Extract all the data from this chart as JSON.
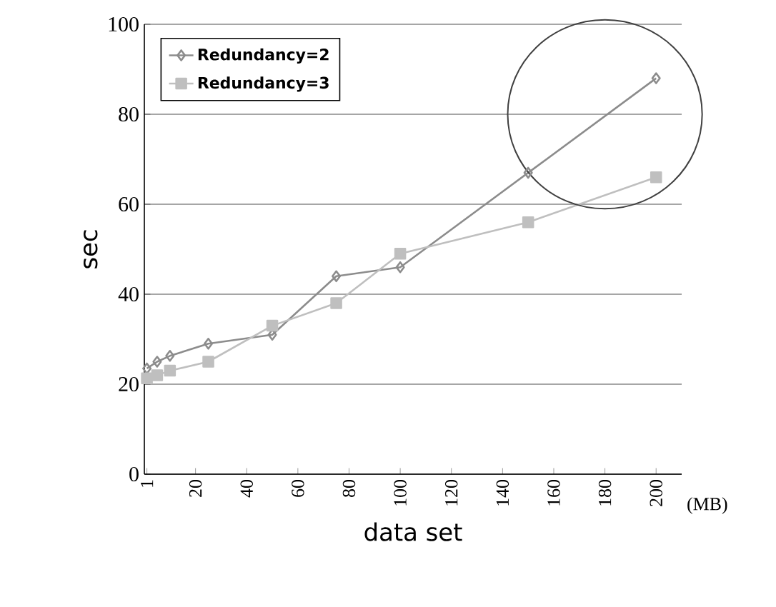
{
  "chart_data": {
    "type": "line",
    "xlabel": "data set",
    "ylabel": "sec",
    "xlim": [
      0,
      210
    ],
    "ylim": [
      0,
      100
    ],
    "xticks": [
      1,
      20,
      40,
      60,
      80,
      100,
      120,
      140,
      160,
      180,
      200
    ],
    "yticks": [
      0,
      20,
      40,
      60,
      80,
      100
    ],
    "grid": "y",
    "legend": "top left",
    "line_style": "solid",
    "series": [
      {
        "name": "Redundancy=2",
        "color": "#8c8c8c",
        "marker": "diamond",
        "x": [
          1,
          5,
          10,
          25,
          50,
          75,
          100,
          150,
          200
        ],
        "values": [
          23.5,
          25,
          26.3,
          29,
          31,
          44,
          46,
          67,
          88
        ]
      },
      {
        "name": "Redundancy=3",
        "color": "#bfbfbf",
        "marker": "square",
        "x": [
          1,
          5,
          10,
          25,
          50,
          75,
          100,
          150,
          200
        ],
        "values": [
          21.3,
          22,
          23,
          25,
          33,
          38,
          49,
          56,
          66
        ]
      }
    ],
    "annotations": [
      "(MB)"
    ]
  }
}
